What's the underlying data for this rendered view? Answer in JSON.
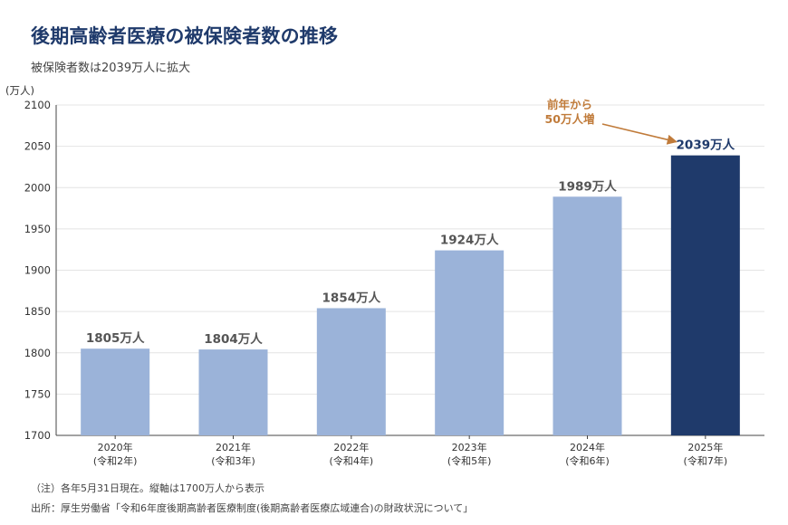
{
  "title": "後期高齢者医療の被保険者数の推移",
  "subtitle": "被保険者数は2039万人に拡大",
  "notes": {
    "note": "（注）各年5月31日現在。縦軸は1700万人から表示",
    "source": "出所：厚生労働省「令和6年度後期高齢者医療制度(後期高齢者医療広域連合)の財政状況について」"
  },
  "colors": {
    "bar": "#9bb3d9",
    "highlight": "#1f3a6b",
    "annotation": "#c07b3a",
    "grid": "#e4e4e4",
    "axis": "#444444"
  },
  "chart_data": {
    "type": "bar",
    "ylabel": "(万人)",
    "ylim": [
      1700,
      2100
    ],
    "yticks": [
      1700,
      1750,
      1800,
      1850,
      1900,
      1950,
      2000,
      2050,
      2100
    ],
    "grid": true,
    "categories": [
      [
        "2020年",
        "(令和2年)"
      ],
      [
        "2021年",
        "(令和3年)"
      ],
      [
        "2022年",
        "(令和4年)"
      ],
      [
        "2023年",
        "(令和5年)"
      ],
      [
        "2024年",
        "(令和6年)"
      ],
      [
        "2025年",
        "(令和7年)"
      ]
    ],
    "values": [
      1805,
      1804,
      1854,
      1924,
      1989,
      2039
    ],
    "data_labels": [
      "1805万人",
      "1804万人",
      "1854万人",
      "1924万人",
      "1989万人",
      "2039万人"
    ],
    "highlight_index": 5,
    "annotation": {
      "lines": [
        "前年から",
        "50万人増"
      ],
      "target_index": 5
    }
  }
}
